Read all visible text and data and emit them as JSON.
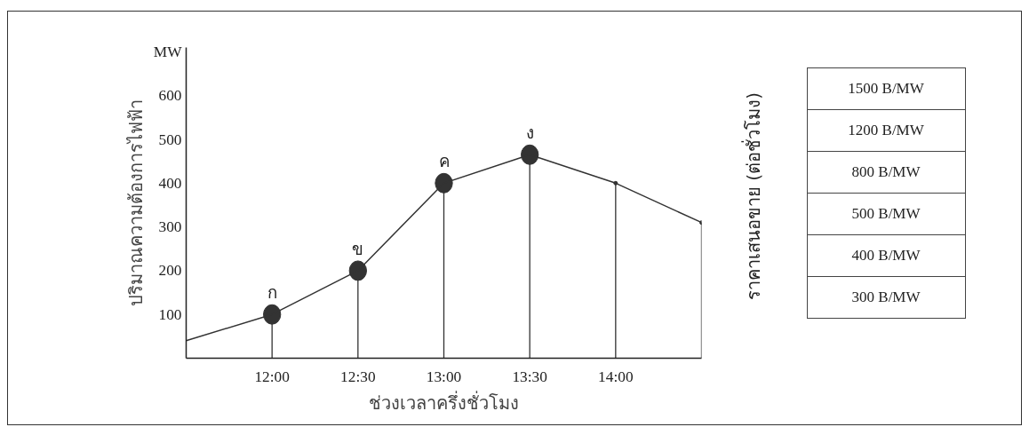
{
  "chart_data": {
    "type": "line",
    "xlabel": "ช่วงเวลาครึ่งชั่วโมง",
    "ylabel": "ปริมาณความต้องการไฟฟ้า",
    "xlim": [
      11.5,
      14.5
    ],
    "xticks": [
      {
        "value": 12,
        "label": "12:00"
      },
      {
        "value": 12.5,
        "label": "12:30"
      },
      {
        "value": 13,
        "label": "13:00"
      },
      {
        "value": 13.5,
        "label": "13:30"
      },
      {
        "value": 14,
        "label": "14:00"
      }
    ],
    "ylim": [
      0,
      710
    ],
    "yticks": [
      100,
      200,
      300,
      400,
      500,
      600,
      {
        "value": 700,
        "label": "MW"
      }
    ],
    "grid": false,
    "series": [
      {
        "type": "lollipop",
        "color": "#333333",
        "marker": "circle",
        "x": [
          12,
          12.5,
          13,
          13.5
        ],
        "values": [
          100,
          200,
          400,
          465
        ]
      },
      {
        "type": "lollipop",
        "color": "#333333",
        "marker": "none",
        "x": [
          14,
          14.5
        ],
        "values": [
          400,
          310
        ]
      },
      {
        "color": "#333333",
        "marker": "none",
        "line_style": "solid",
        "x": [
          11.5,
          12,
          12.5,
          13,
          13.5,
          14,
          14.5
        ],
        "values": [
          40,
          100,
          200,
          400,
          465,
          400,
          310
        ]
      }
    ],
    "annotations": [
      {
        "text": "ก",
        "x": 12,
        "y": 100
      },
      {
        "text": "ข",
        "x": 12.5,
        "y": 200
      },
      {
        "text": "ค",
        "x": 13,
        "y": 400
      },
      {
        "text": "ง",
        "x": 13.5,
        "y": 465
      },
      "ราคาเสนอขาย (ต่อชั่วโมง)",
      "1500 B/MW",
      "1200 B/MW",
      "800  B/MW",
      "500  B/MW",
      "400  B/MW",
      "300  B/MW"
    ]
  }
}
